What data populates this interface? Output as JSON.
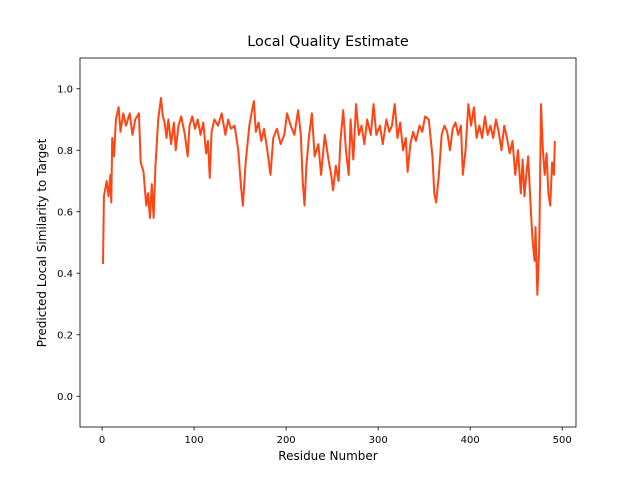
{
  "chart_data": {
    "type": "line",
    "title": "Local Quality Estimate",
    "x_label": "Residue Number",
    "y_label": "Predicted Local Similarity to Target",
    "xlim": [
      -24,
      515
    ],
    "ylim": [
      -0.1,
      1.1
    ],
    "xticks": [
      0,
      100,
      200,
      300,
      400,
      500
    ],
    "yticks": [
      {
        "value": 0,
        "label": "0.0"
      },
      0.2,
      0.4,
      0.6,
      0.8,
      {
        "value": 1,
        "label": "1.0"
      }
    ],
    "grid": false,
    "series": [
      {
        "color": "#ff4513",
        "x": [
          1,
          2,
          5,
          7,
          9,
          10,
          11,
          13,
          15,
          18,
          20,
          23,
          26,
          30,
          33,
          36,
          40,
          42,
          45,
          48,
          50,
          52,
          54,
          56,
          58,
          61,
          64,
          66,
          68,
          70,
          72,
          75,
          78,
          80,
          83,
          86,
          90,
          93,
          95,
          98,
          101,
          104,
          107,
          110,
          113,
          115,
          117,
          119,
          122,
          126,
          130,
          134,
          137,
          140,
          144,
          148,
          151,
          153,
          156,
          160,
          163,
          165,
          167,
          170,
          173,
          176,
          180,
          183,
          186,
          190,
          194,
          198,
          201,
          205,
          209,
          213,
          216,
          218,
          220,
          222,
          225,
          228,
          231,
          235,
          238,
          242,
          246,
          249,
          251,
          254,
          257,
          259,
          262,
          265,
          268,
          270,
          273,
          276,
          279,
          282,
          285,
          288,
          292,
          295,
          298,
          302,
          305,
          309,
          312,
          315,
          318,
          321,
          324,
          327,
          330,
          332,
          335,
          338,
          341,
          345,
          348,
          351,
          355,
          359,
          361,
          363,
          366,
          369,
          372,
          375,
          378,
          381,
          384,
          387,
          390,
          392,
          395,
          398,
          401,
          404,
          407,
          410,
          413,
          416,
          419,
          422,
          425,
          428,
          431,
          434,
          437,
          440,
          443,
          446,
          449,
          452,
          455,
          457,
          459,
          461,
          463,
          466,
          468,
          470,
          471,
          473,
          475,
          477,
          479,
          481,
          483,
          485,
          487,
          489,
          491,
          492
        ],
        "values": [
          0.43,
          0.65,
          0.7,
          0.65,
          0.72,
          0.63,
          0.84,
          0.78,
          0.9,
          0.94,
          0.86,
          0.92,
          0.88,
          0.92,
          0.85,
          0.9,
          0.92,
          0.76,
          0.73,
          0.62,
          0.66,
          0.58,
          0.69,
          0.58,
          0.75,
          0.9,
          0.97,
          0.91,
          0.89,
          0.84,
          0.9,
          0.82,
          0.89,
          0.8,
          0.88,
          0.91,
          0.85,
          0.78,
          0.88,
          0.91,
          0.87,
          0.9,
          0.85,
          0.89,
          0.79,
          0.83,
          0.71,
          0.86,
          0.9,
          0.88,
          0.92,
          0.85,
          0.9,
          0.87,
          0.88,
          0.8,
          0.68,
          0.62,
          0.76,
          0.88,
          0.93,
          0.96,
          0.86,
          0.89,
          0.83,
          0.87,
          0.79,
          0.72,
          0.84,
          0.87,
          0.82,
          0.85,
          0.92,
          0.88,
          0.85,
          0.93,
          0.85,
          0.7,
          0.62,
          0.75,
          0.85,
          0.92,
          0.78,
          0.82,
          0.72,
          0.85,
          0.77,
          0.72,
          0.67,
          0.75,
          0.7,
          0.83,
          0.93,
          0.8,
          0.72,
          0.9,
          0.77,
          0.95,
          0.85,
          0.88,
          0.82,
          0.9,
          0.85,
          0.95,
          0.85,
          0.88,
          0.82,
          0.9,
          0.86,
          0.88,
          0.95,
          0.84,
          0.89,
          0.8,
          0.84,
          0.73,
          0.82,
          0.86,
          0.83,
          0.88,
          0.86,
          0.91,
          0.9,
          0.78,
          0.66,
          0.63,
          0.72,
          0.85,
          0.88,
          0.86,
          0.8,
          0.87,
          0.89,
          0.85,
          0.88,
          0.72,
          0.8,
          0.95,
          0.88,
          0.94,
          0.84,
          0.88,
          0.84,
          0.91,
          0.85,
          0.88,
          0.84,
          0.9,
          0.86,
          0.8,
          0.88,
          0.84,
          0.79,
          0.83,
          0.72,
          0.8,
          0.66,
          0.77,
          0.65,
          0.72,
          0.78,
          0.6,
          0.5,
          0.44,
          0.55,
          0.33,
          0.48,
          0.95,
          0.8,
          0.72,
          0.79,
          0.66,
          0.62,
          0.76,
          0.72,
          0.83
        ]
      }
    ]
  }
}
